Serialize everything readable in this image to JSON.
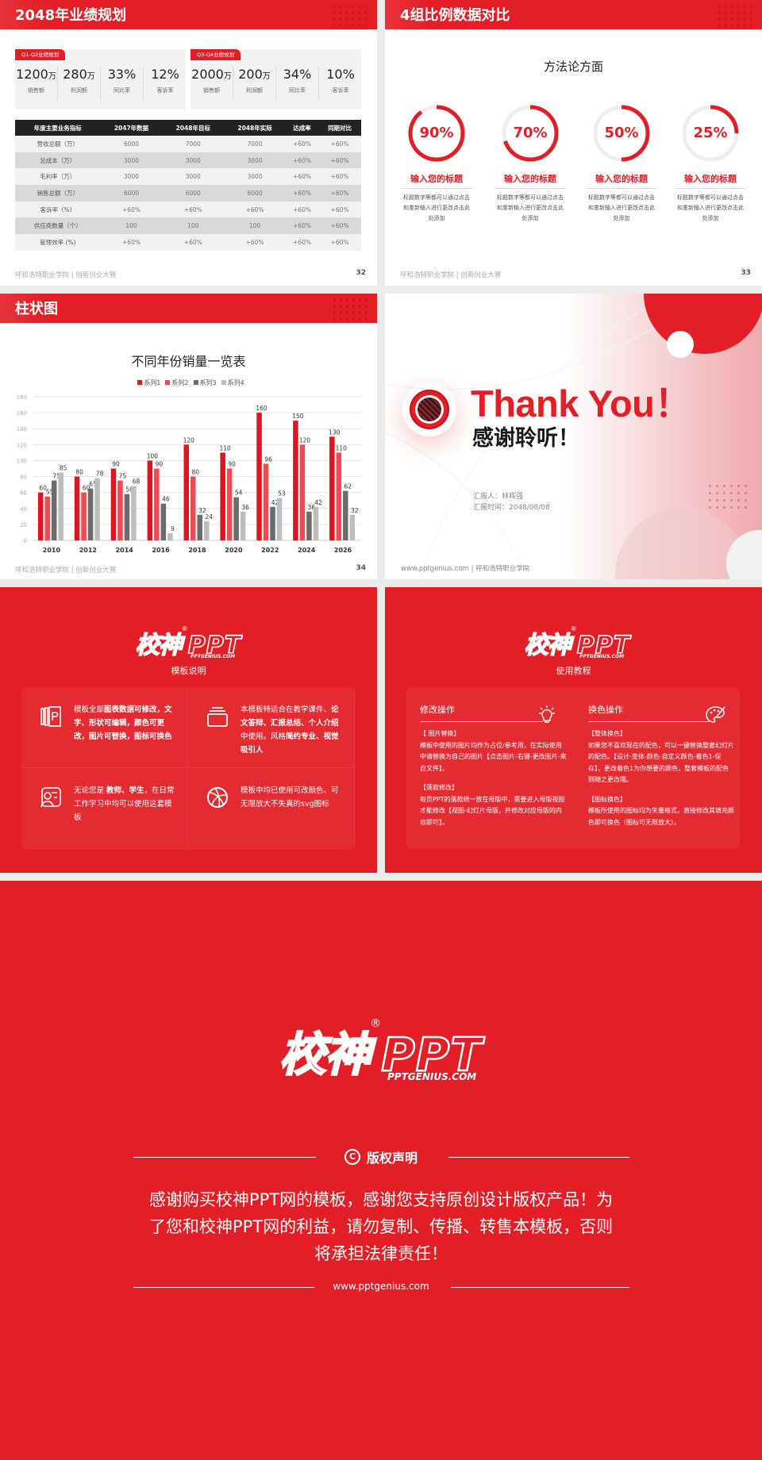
{
  "colors": {
    "brand": "#e31e26",
    "dark": "#222222",
    "s1": "#e0141e",
    "s2": "#ee4a52",
    "s3": "#6b6b6b",
    "s4": "#bdbdbd"
  },
  "footer": {
    "school": "呼和浩特职业学院 | 创新创业大赛",
    "site_school": "www.pptgenius.com | 呼和浩特职业学院"
  },
  "slide1": {
    "title": "2048年业绩规划",
    "page": "32",
    "cards": [
      {
        "tag": "Q1-Q2业绩规划",
        "items": [
          {
            "v": "1200",
            "u": "万",
            "l": "销售额"
          },
          {
            "v": "280",
            "u": "万",
            "l": "利润额"
          },
          {
            "v": "33%",
            "u": "",
            "l": "同比率"
          },
          {
            "v": "12%",
            "u": "",
            "l": "客诉率"
          }
        ]
      },
      {
        "tag": "Q3-Q4业绩规划",
        "items": [
          {
            "v": "2000",
            "u": "万",
            "l": "销售额"
          },
          {
            "v": "200",
            "u": "万",
            "l": "利润额"
          },
          {
            "v": "34%",
            "u": "",
            "l": "同比率"
          },
          {
            "v": "10%",
            "u": "",
            "l": "客诉率"
          }
        ]
      }
    ],
    "table": {
      "headers": [
        "年度主要业务指标",
        "2047年数据",
        "2048年目标",
        "2048年实际",
        "达成率",
        "同期对比"
      ],
      "rows": [
        [
          "营收总额（万）",
          "6000",
          "7000",
          "7000",
          "+60%",
          "+60%"
        ],
        [
          "总成本（万）",
          "3000",
          "3000",
          "3000",
          "+60%",
          "+60%"
        ],
        [
          "毛利率（万）",
          "3000",
          "3000",
          "3000",
          "+60%",
          "+60%"
        ],
        [
          "销售总额（万）",
          "6000",
          "6000",
          "6000",
          "+60%",
          "+60%"
        ],
        [
          "客诉率（%）",
          "+60%",
          "+60%",
          "+60%",
          "+60%",
          "+60%"
        ],
        [
          "供应商数量（个）",
          "100",
          "100",
          "100",
          "+60%",
          "+60%"
        ],
        [
          "管理效率 (%)",
          "+60%",
          "+60%",
          "+60%",
          "+60%",
          "+60%"
        ]
      ]
    }
  },
  "slide2": {
    "title": "4组比例数据对比",
    "subtitle": "方法论方面",
    "page": "33",
    "items": [
      {
        "pct": "90%",
        "value": 90,
        "title": "输入您的标题",
        "desc": "标题数字等都可以通过点击和重新输入进行更改点击此处添加"
      },
      {
        "pct": "70%",
        "value": 70,
        "title": "输入您的标题",
        "desc": "标题数字等都可以通过点击和重新输入进行更改点击此处添加"
      },
      {
        "pct": "50%",
        "value": 50,
        "title": "输入您的标题",
        "desc": "标题数字等都可以通过点击和重新输入进行更改点击此处添加"
      },
      {
        "pct": "25%",
        "value": 25,
        "title": "输入您的标题",
        "desc": "标题数字等都可以通过点击和重新输入进行更改点击此处添加"
      }
    ]
  },
  "slide3": {
    "title": "柱状图",
    "page": "34"
  },
  "chart_data": {
    "type": "bar",
    "title": "不同年份销量一览表",
    "xlabel": "",
    "ylabel": "",
    "categories": [
      "2010",
      "2012",
      "2014",
      "2016",
      "2018",
      "2020",
      "2022",
      "2024",
      "2026"
    ],
    "ylim": [
      0,
      180
    ],
    "yticks": [
      0,
      20,
      40,
      60,
      80,
      100,
      120,
      140,
      160,
      180
    ],
    "grid": true,
    "legend": "top",
    "series": [
      {
        "name": "系列1",
        "values": [
          60,
          80,
          90,
          100,
          120,
          110,
          160,
          150,
          130
        ]
      },
      {
        "name": "系列2",
        "values": [
          55,
          60,
          75,
          90,
          80,
          90,
          96,
          120,
          110
        ]
      },
      {
        "name": "系列3",
        "values": [
          75,
          65,
          58,
          46,
          32,
          54,
          42,
          36,
          62
        ]
      },
      {
        "name": "系列4",
        "values": [
          85,
          78,
          68,
          9,
          24,
          36,
          53,
          42,
          32
        ]
      }
    ]
  },
  "slide4": {
    "title": "Thank You！",
    "subtitle": "感谢聆听！",
    "reporter": "汇报人：林辉强",
    "date": "汇报时间：2048/08/08"
  },
  "logo": {
    "cn": "校神",
    "reg": "®",
    "en": "PPT",
    "sub": "PPTGENIUS.COM"
  },
  "slide5": {
    "subtitle": "模板说明",
    "cells": [
      {
        "icon": "book-icon",
        "segs": [
          {
            "t": "模板全部",
            "b": false
          },
          {
            "t": "图表数据可修改，文字、形状可编辑，颜色可更改，图片可替换，图标可换色",
            "b": true
          }
        ]
      },
      {
        "icon": "window-icon",
        "segs": [
          {
            "t": "本模板特适合在教学课件、",
            "b": false
          },
          {
            "t": "论文答辩、汇报总结、个人介绍",
            "b": true
          },
          {
            "t": "中使用。风格",
            "b": false
          },
          {
            "t": "简约专业、视觉吸引人",
            "b": true
          }
        ]
      },
      {
        "icon": "user-card-icon",
        "segs": [
          {
            "t": "无论您是 ",
            "b": false
          },
          {
            "t": "教师、学生",
            "b": true
          },
          {
            "t": "，在日常工作学习中均可以使用这套模板",
            "b": false
          }
        ]
      },
      {
        "icon": "ball-icon",
        "segs": [
          {
            "t": "模板中均已使用可改颜色、可无限放大不失真的svg图标",
            "b": false
          }
        ]
      }
    ]
  },
  "slide6": {
    "subtitle": "使用教程",
    "cols": [
      {
        "heading": "修改操作",
        "icon": "lightbulb-icon",
        "blocks": [
          {
            "h": "【 图片替换】",
            "p": "模板中使用的图片均作为占位/参考用，在实际使用中请替换为自己的图片【点击图片-右键-更改图片-来自文件】。"
          },
          {
            "h": "【落款修改】",
            "p": "每页PPT的落款统一放在母版中，需要进入母版视图才能修改【视图-幻灯片母版，并修改对应母版的内容即可】。"
          }
        ]
      },
      {
        "heading": "换色操作",
        "icon": "palette-icon",
        "blocks": [
          {
            "h": "【整体换色】",
            "p": "如果您不喜欢现在的配色，可以一键替换整套幻灯片的配色。【设计-变体-颜色-自定义颜色-着色1-保存】，更改着色1为你想要的颜色，整套模板的配色则随之更改哦。"
          },
          {
            "h": "【图标换色】",
            "p": "模板所使用的图标均为矢量格式，直接修改其填充颜色即可换色（图标可无限放大）。"
          }
        ]
      }
    ]
  },
  "copyright": {
    "heading": "版权声明",
    "lines": [
      "感谢购买校神PPT网的模板，感谢您支持原创设计版权产品！为",
      "了您和校神PPT网的利益，请勿复制、传播、转售本模板，否则",
      "将承担法律责任！"
    ],
    "url": "www.pptgenius.com"
  }
}
